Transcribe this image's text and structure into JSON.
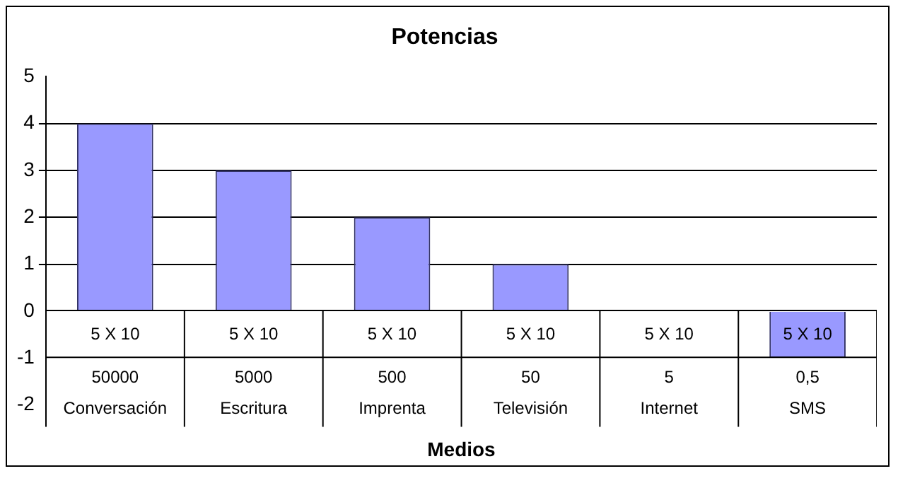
{
  "chart_data": {
    "type": "bar",
    "title": "Potencias",
    "xlabel": "Medios",
    "categories": [
      "5 X 10\n50000\nConversación",
      "5 X 10\n5000\nEscritura",
      "5 X 10\n500\nImprenta",
      "5 X 10\n50\nTelevisión",
      "5 X 10\n5\nInternet",
      "5 X 10\n0,5\nSMS"
    ],
    "values": [
      4,
      3,
      2,
      1,
      0,
      -1
    ],
    "color": "#9999ff",
    "ylim": [
      -2,
      5
    ],
    "yticks": [
      -2,
      -1,
      0,
      1,
      2,
      3,
      4,
      5
    ],
    "grid": "y",
    "legend": false
  }
}
